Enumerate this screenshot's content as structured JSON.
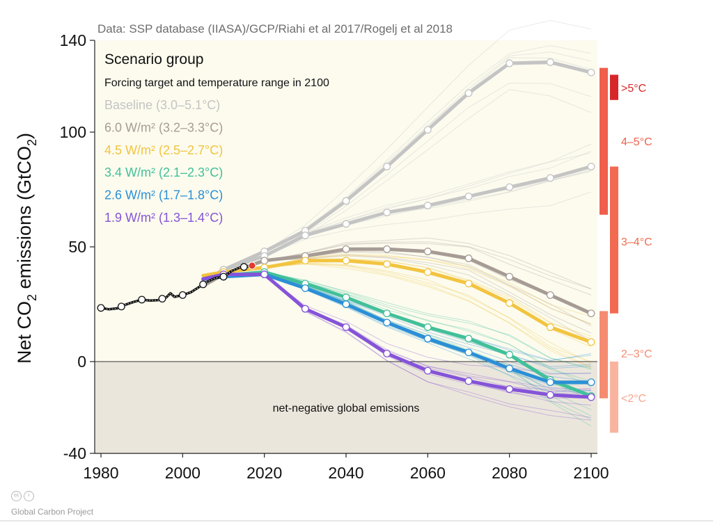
{
  "chart_data": {
    "type": "line",
    "source": "Data: SSP database (IIASA)/GCP/Riahi et al 2017/Rogelj et al 2018",
    "ylabel_main": "Net CO",
    "ylabel_sub": "2",
    "ylabel_rest": " emissions (GtCO",
    "ylabel_sub2": "2",
    "ylabel_end": ")",
    "xlim": [
      1980,
      2100
    ],
    "ylim": [
      -40,
      140
    ],
    "xticks": [
      "1980",
      "2000",
      "2020",
      "2040",
      "2060",
      "2080",
      "2100"
    ],
    "yticks": [
      "-40",
      "0",
      "50",
      "100",
      "140"
    ],
    "legend_title": "Scenario group",
    "legend_subtitle": "Forcing target and temperature range in 2100",
    "negative_label": "net-negative global emissions",
    "historical": {
      "x": [
        1980,
        1982,
        1984,
        1986,
        1988,
        1990,
        1992,
        1994,
        1996,
        1997,
        1998,
        2000,
        2002,
        2004,
        2006,
        2008,
        2010,
        2012,
        2014,
        2016,
        2017
      ],
      "values": [
        23.4,
        22.8,
        23.2,
        24.8,
        26.0,
        27.0,
        26.6,
        26.8,
        28.0,
        29.8,
        28.2,
        29.0,
        30.2,
        32.5,
        34.8,
        36.4,
        37.0,
        39.5,
        41.0,
        41.5,
        41.8
      ],
      "markers": [
        1980,
        1985,
        1990,
        1995,
        2000,
        2005,
        2010,
        2015
      ],
      "latest_year": 2017,
      "latest_value": 41.8
    },
    "series": [
      {
        "name": "Baseline (3.0–5.1°C)",
        "color": "#c4c4c4",
        "x": [
          2005,
          2010,
          2020,
          2030,
          2040,
          2050,
          2060,
          2070,
          2080,
          2090,
          2100
        ],
        "values": [
          35,
          40,
          48,
          57,
          70,
          85,
          101,
          117,
          130,
          130.5,
          126
        ]
      },
      {
        "name": "",
        "color": "#c4c4c4",
        "x": [
          2005,
          2010,
          2020,
          2030,
          2040,
          2050,
          2060,
          2070,
          2080,
          2090,
          2100
        ],
        "values": [
          35,
          40,
          46,
          55,
          60,
          65,
          68,
          72,
          76,
          80,
          85
        ]
      },
      {
        "name": "6.0 W/m² (3.2–3.3°C)",
        "color": "#a79c95",
        "x": [
          2005,
          2010,
          2020,
          2030,
          2040,
          2050,
          2060,
          2070,
          2080,
          2090,
          2100
        ],
        "values": [
          33,
          38,
          44,
          46,
          49,
          49,
          48,
          45,
          37,
          29,
          21
        ]
      },
      {
        "name": "4.5 W/m² (2.5–2.7°C)",
        "color": "#f2c43f",
        "x": [
          2005,
          2010,
          2020,
          2030,
          2040,
          2050,
          2060,
          2070,
          2080,
          2090,
          2100
        ],
        "values": [
          37.5,
          39,
          41,
          44,
          44,
          42.5,
          39,
          34,
          25.5,
          15,
          8.5
        ]
      },
      {
        "name": "3.4 W/m² (2.1–2.3°C)",
        "color": "#42c09a",
        "x": [
          2005,
          2010,
          2020,
          2030,
          2040,
          2050,
          2060,
          2070,
          2080,
          2090,
          2100
        ],
        "values": [
          36,
          37.5,
          39,
          34,
          28,
          21,
          15,
          10,
          3,
          -8,
          -15
        ]
      },
      {
        "name": "2.6 W/m² (1.7–1.8°C)",
        "color": "#2b8fd6",
        "x": [
          2005,
          2010,
          2020,
          2030,
          2040,
          2050,
          2060,
          2070,
          2080,
          2090,
          2100
        ],
        "values": [
          36,
          37,
          38,
          32,
          25,
          17,
          10,
          4,
          -3,
          -9,
          -9
        ]
      },
      {
        "name": "1.9 W/m² (1.3–1.4°C)",
        "color": "#8553d8",
        "x": [
          2005,
          2010,
          2020,
          2030,
          2040,
          2050,
          2060,
          2070,
          2080,
          2090,
          2100
        ],
        "values": [
          36,
          38,
          38,
          23,
          15,
          3.5,
          -4,
          -8.5,
          -12,
          -14.5,
          -15.5
        ]
      }
    ],
    "temperature_bands": [
      {
        "label": ">5°C",
        "color": "#d7262a",
        "ymin": 114,
        "ymax": 125,
        "column": "inner"
      },
      {
        "label": "4–5°C",
        "color": "#ef5f4b",
        "ymin": 64,
        "ymax": 128,
        "column": "outer"
      },
      {
        "label": "3–4°C",
        "color": "#f26b51",
        "ymin": 21,
        "ymax": 85,
        "column": "inner"
      },
      {
        "label": "2–3°C",
        "color": "#f58b70",
        "ymin": -16,
        "ymax": 22,
        "column": "outer"
      },
      {
        "label": "<2°C",
        "color": "#f8b49e",
        "ymin": -31,
        "ymax": 0,
        "column": "inner"
      }
    ],
    "band_label_colors": {
      ">5°C": "#d7262a",
      "4–5°C": "#ef5f4b",
      "3–4°C": "#f26b51",
      "2–3°C": "#f58b70",
      "<2°C": "#f7a58e"
    },
    "background_colors": {
      "positive": "#fcfbee",
      "negative": "#ebe6dc"
    }
  },
  "footer": {
    "cc_icon": "cc",
    "by_icon": "i",
    "credit": "Global Carbon Project"
  }
}
